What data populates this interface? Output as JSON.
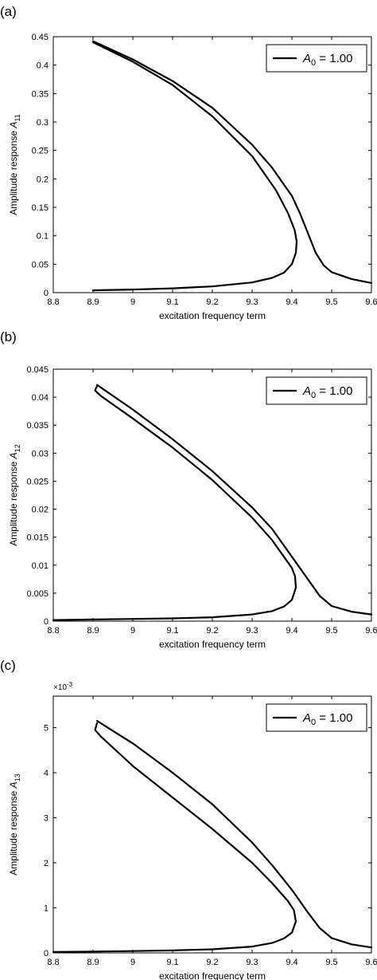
{
  "legend_label": "A0 = 1.00",
  "colors": {
    "curve": "#000000",
    "axes": "#000000",
    "background": "#ffffff"
  },
  "chart_data": [
    {
      "type": "line",
      "panel_label": "(a)",
      "xlabel": "excitation frequency term",
      "ylabel": "Amplitude response A11",
      "ylabel_main": "Amplitude response ",
      "ylabel_base": "A",
      "ylabel_sub": "11",
      "xlim": [
        8.8,
        9.6
      ],
      "ylim": [
        0,
        0.45
      ],
      "xticks": [
        8.8,
        8.9,
        9.0,
        9.1,
        9.2,
        9.3,
        9.4,
        9.5,
        9.6
      ],
      "xtick_labels": [
        "8.8",
        "8.9",
        "9",
        "9.1",
        "9.2",
        "9.3",
        "9.4",
        "9.5",
        "9.6"
      ],
      "yticks": [
        0,
        0.05,
        0.1,
        0.15,
        0.2,
        0.25,
        0.3,
        0.35,
        0.4,
        0.45
      ],
      "ytick_labels": [
        "0",
        "0.05",
        "0.1",
        "0.15",
        "0.2",
        "0.25",
        "0.3",
        "0.35",
        "0.4",
        "0.45"
      ],
      "exponent_label": "",
      "legend": {
        "entries": [
          "A0 = 1.00"
        ],
        "location": "top-right"
      },
      "grid": false,
      "series": [
        {
          "values": [
            {
              "x": 8.9,
              "y": 0.004
            },
            {
              "x": 9.0,
              "y": 0.0055
            },
            {
              "x": 9.1,
              "y": 0.0075
            },
            {
              "x": 9.2,
              "y": 0.011
            },
            {
              "x": 9.3,
              "y": 0.018
            },
            {
              "x": 9.35,
              "y": 0.026
            },
            {
              "x": 9.38,
              "y": 0.035
            },
            {
              "x": 9.4,
              "y": 0.05
            },
            {
              "x": 9.41,
              "y": 0.07
            },
            {
              "x": 9.412,
              "y": 0.09
            },
            {
              "x": 9.407,
              "y": 0.11
            },
            {
              "x": 9.39,
              "y": 0.14
            },
            {
              "x": 9.36,
              "y": 0.18
            },
            {
              "x": 9.3,
              "y": 0.24
            },
            {
              "x": 9.2,
              "y": 0.31
            },
            {
              "x": 9.1,
              "y": 0.365
            },
            {
              "x": 9.0,
              "y": 0.406
            },
            {
              "x": 8.9,
              "y": 0.44
            }
          ]
        },
        {
          "values": [
            {
              "x": 8.9,
              "y": 0.442
            },
            {
              "x": 9.0,
              "y": 0.41
            },
            {
              "x": 9.1,
              "y": 0.372
            },
            {
              "x": 9.2,
              "y": 0.325
            },
            {
              "x": 9.3,
              "y": 0.26
            },
            {
              "x": 9.35,
              "y": 0.22
            },
            {
              "x": 9.4,
              "y": 0.17
            },
            {
              "x": 9.42,
              "y": 0.14
            },
            {
              "x": 9.44,
              "y": 0.105
            },
            {
              "x": 9.46,
              "y": 0.07
            },
            {
              "x": 9.48,
              "y": 0.048
            },
            {
              "x": 9.5,
              "y": 0.036
            },
            {
              "x": 9.55,
              "y": 0.024
            },
            {
              "x": 9.6,
              "y": 0.017
            }
          ]
        }
      ]
    },
    {
      "type": "line",
      "panel_label": "(b)",
      "xlabel": "excitation frequency term",
      "ylabel": "Amplitude response A12",
      "ylabel_main": "Amplitude response ",
      "ylabel_base": "A",
      "ylabel_sub": "12",
      "xlim": [
        8.8,
        9.6
      ],
      "ylim": [
        0,
        0.045
      ],
      "xticks": [
        8.8,
        8.9,
        9.0,
        9.1,
        9.2,
        9.3,
        9.4,
        9.5,
        9.6
      ],
      "xtick_labels": [
        "8.8",
        "8.9",
        "9",
        "9.1",
        "9.2",
        "9.3",
        "9.4",
        "9.5",
        "9.6"
      ],
      "yticks": [
        0,
        0.005,
        0.01,
        0.015,
        0.02,
        0.025,
        0.03,
        0.035,
        0.04,
        0.045
      ],
      "ytick_labels": [
        "0",
        "0.005",
        "0.01",
        "0.015",
        "0.02",
        "0.025",
        "0.03",
        "0.035",
        "0.04",
        "0.045"
      ],
      "exponent_label": "",
      "legend": {
        "entries": [
          "A0 = 1.00"
        ],
        "location": "top-right"
      },
      "grid": false,
      "series": [
        {
          "values": [
            {
              "x": 8.8,
              "y": 0.0002
            },
            {
              "x": 8.9,
              "y": 0.0003
            },
            {
              "x": 9.0,
              "y": 0.0004
            },
            {
              "x": 9.1,
              "y": 0.0005
            },
            {
              "x": 9.2,
              "y": 0.0007
            },
            {
              "x": 9.3,
              "y": 0.0012
            },
            {
              "x": 9.35,
              "y": 0.0018
            },
            {
              "x": 9.38,
              "y": 0.0026
            },
            {
              "x": 9.4,
              "y": 0.0038
            },
            {
              "x": 9.41,
              "y": 0.006
            },
            {
              "x": 9.408,
              "y": 0.008
            },
            {
              "x": 9.4,
              "y": 0.0095
            },
            {
              "x": 9.35,
              "y": 0.0145
            },
            {
              "x": 9.3,
              "y": 0.0185
            },
            {
              "x": 9.2,
              "y": 0.0252
            },
            {
              "x": 9.1,
              "y": 0.031
            },
            {
              "x": 9.0,
              "y": 0.0362
            },
            {
              "x": 8.92,
              "y": 0.0402
            },
            {
              "x": 8.905,
              "y": 0.0412
            },
            {
              "x": 8.91,
              "y": 0.042
            }
          ]
        },
        {
          "values": [
            {
              "x": 8.91,
              "y": 0.0422
            },
            {
              "x": 9.0,
              "y": 0.0378
            },
            {
              "x": 9.1,
              "y": 0.0325
            },
            {
              "x": 9.2,
              "y": 0.0268
            },
            {
              "x": 9.3,
              "y": 0.0203
            },
            {
              "x": 9.35,
              "y": 0.0165
            },
            {
              "x": 9.4,
              "y": 0.0115
            },
            {
              "x": 9.44,
              "y": 0.0075
            },
            {
              "x": 9.47,
              "y": 0.0045
            },
            {
              "x": 9.5,
              "y": 0.0027
            },
            {
              "x": 9.55,
              "y": 0.0017
            },
            {
              "x": 9.6,
              "y": 0.0012
            }
          ]
        }
      ]
    },
    {
      "type": "line",
      "panel_label": "(c)",
      "xlabel": "excitation frequency term",
      "ylabel": "Amplitude response A13",
      "ylabel_main": "Amplitude response ",
      "ylabel_base": "A",
      "ylabel_sub": "13",
      "xlim": [
        8.8,
        9.6
      ],
      "ylim": [
        0,
        5.7
      ],
      "xticks": [
        8.8,
        8.9,
        9.0,
        9.1,
        9.2,
        9.3,
        9.4,
        9.5,
        9.6
      ],
      "xtick_labels": [
        "8.8",
        "8.9",
        "9",
        "9.1",
        "9.2",
        "9.3",
        "9.4",
        "9.5",
        "9.6"
      ],
      "yticks": [
        0,
        1,
        2,
        3,
        4,
        5
      ],
      "ytick_labels": [
        "0",
        "1",
        "2",
        "3",
        "4",
        "5"
      ],
      "exponent_label": "×10-3",
      "exponent_base": "×10",
      "exponent_power": "-3",
      "legend": {
        "entries": [
          "A0 = 1.00"
        ],
        "location": "top-right"
      },
      "grid": false,
      "series": [
        {
          "values": [
            {
              "x": 8.8,
              "y": 0.02
            },
            {
              "x": 8.9,
              "y": 0.03
            },
            {
              "x": 9.0,
              "y": 0.04
            },
            {
              "x": 9.1,
              "y": 0.055
            },
            {
              "x": 9.2,
              "y": 0.08
            },
            {
              "x": 9.3,
              "y": 0.14
            },
            {
              "x": 9.35,
              "y": 0.22
            },
            {
              "x": 9.38,
              "y": 0.32
            },
            {
              "x": 9.4,
              "y": 0.45
            },
            {
              "x": 9.41,
              "y": 0.7
            },
            {
              "x": 9.405,
              "y": 0.95
            },
            {
              "x": 9.39,
              "y": 1.15
            },
            {
              "x": 9.35,
              "y": 1.55
            },
            {
              "x": 9.3,
              "y": 2.0
            },
            {
              "x": 9.2,
              "y": 2.75
            },
            {
              "x": 9.1,
              "y": 3.45
            },
            {
              "x": 9.0,
              "y": 4.15
            },
            {
              "x": 8.92,
              "y": 4.8
            },
            {
              "x": 8.905,
              "y": 4.95
            },
            {
              "x": 8.91,
              "y": 5.1
            }
          ]
        },
        {
          "values": [
            {
              "x": 8.91,
              "y": 5.15
            },
            {
              "x": 9.0,
              "y": 4.65
            },
            {
              "x": 9.1,
              "y": 4.0
            },
            {
              "x": 9.2,
              "y": 3.3
            },
            {
              "x": 9.3,
              "y": 2.45
            },
            {
              "x": 9.35,
              "y": 1.95
            },
            {
              "x": 9.4,
              "y": 1.4
            },
            {
              "x": 9.44,
              "y": 0.9
            },
            {
              "x": 9.47,
              "y": 0.55
            },
            {
              "x": 9.5,
              "y": 0.33
            },
            {
              "x": 9.55,
              "y": 0.19
            },
            {
              "x": 9.6,
              "y": 0.12
            }
          ]
        }
      ]
    }
  ]
}
